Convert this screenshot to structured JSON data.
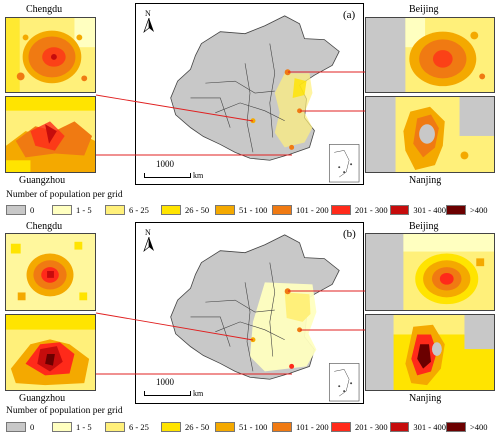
{
  "panels": [
    {
      "label": "(a)",
      "cities": {
        "top_left": "Chengdu",
        "bottom_left": "Guangzhou",
        "top_right": "Beijing",
        "bottom_right": "Nanjing"
      },
      "scale_value": "1000",
      "scale_unit": "km",
      "north": "N"
    },
    {
      "label": "(b)",
      "cities": {
        "top_left": "Chengdu",
        "bottom_left": "Guangzhou",
        "top_right": "Beijing",
        "bottom_right": "Nanjing"
      },
      "scale_value": "1000",
      "scale_unit": "km",
      "north": "N"
    }
  ],
  "legend": {
    "title": "Number of population per grid",
    "items": [
      {
        "label": "0",
        "color": "#c8c8c8"
      },
      {
        "label": "1 - 5",
        "color": "#ffffc0"
      },
      {
        "label": "6 - 25",
        "color": "#fff07a"
      },
      {
        "label": "26 - 50",
        "color": "#ffe400"
      },
      {
        "label": "51 - 100",
        "color": "#f4a900"
      },
      {
        "label": "101 - 200",
        "color": "#f07a12"
      },
      {
        "label": "201 - 300",
        "color": "#ff2a1a"
      },
      {
        "label": "301 - 400",
        "color": "#c60c0c"
      },
      {
        "label": ">400",
        "color": "#6b0000"
      }
    ]
  }
}
